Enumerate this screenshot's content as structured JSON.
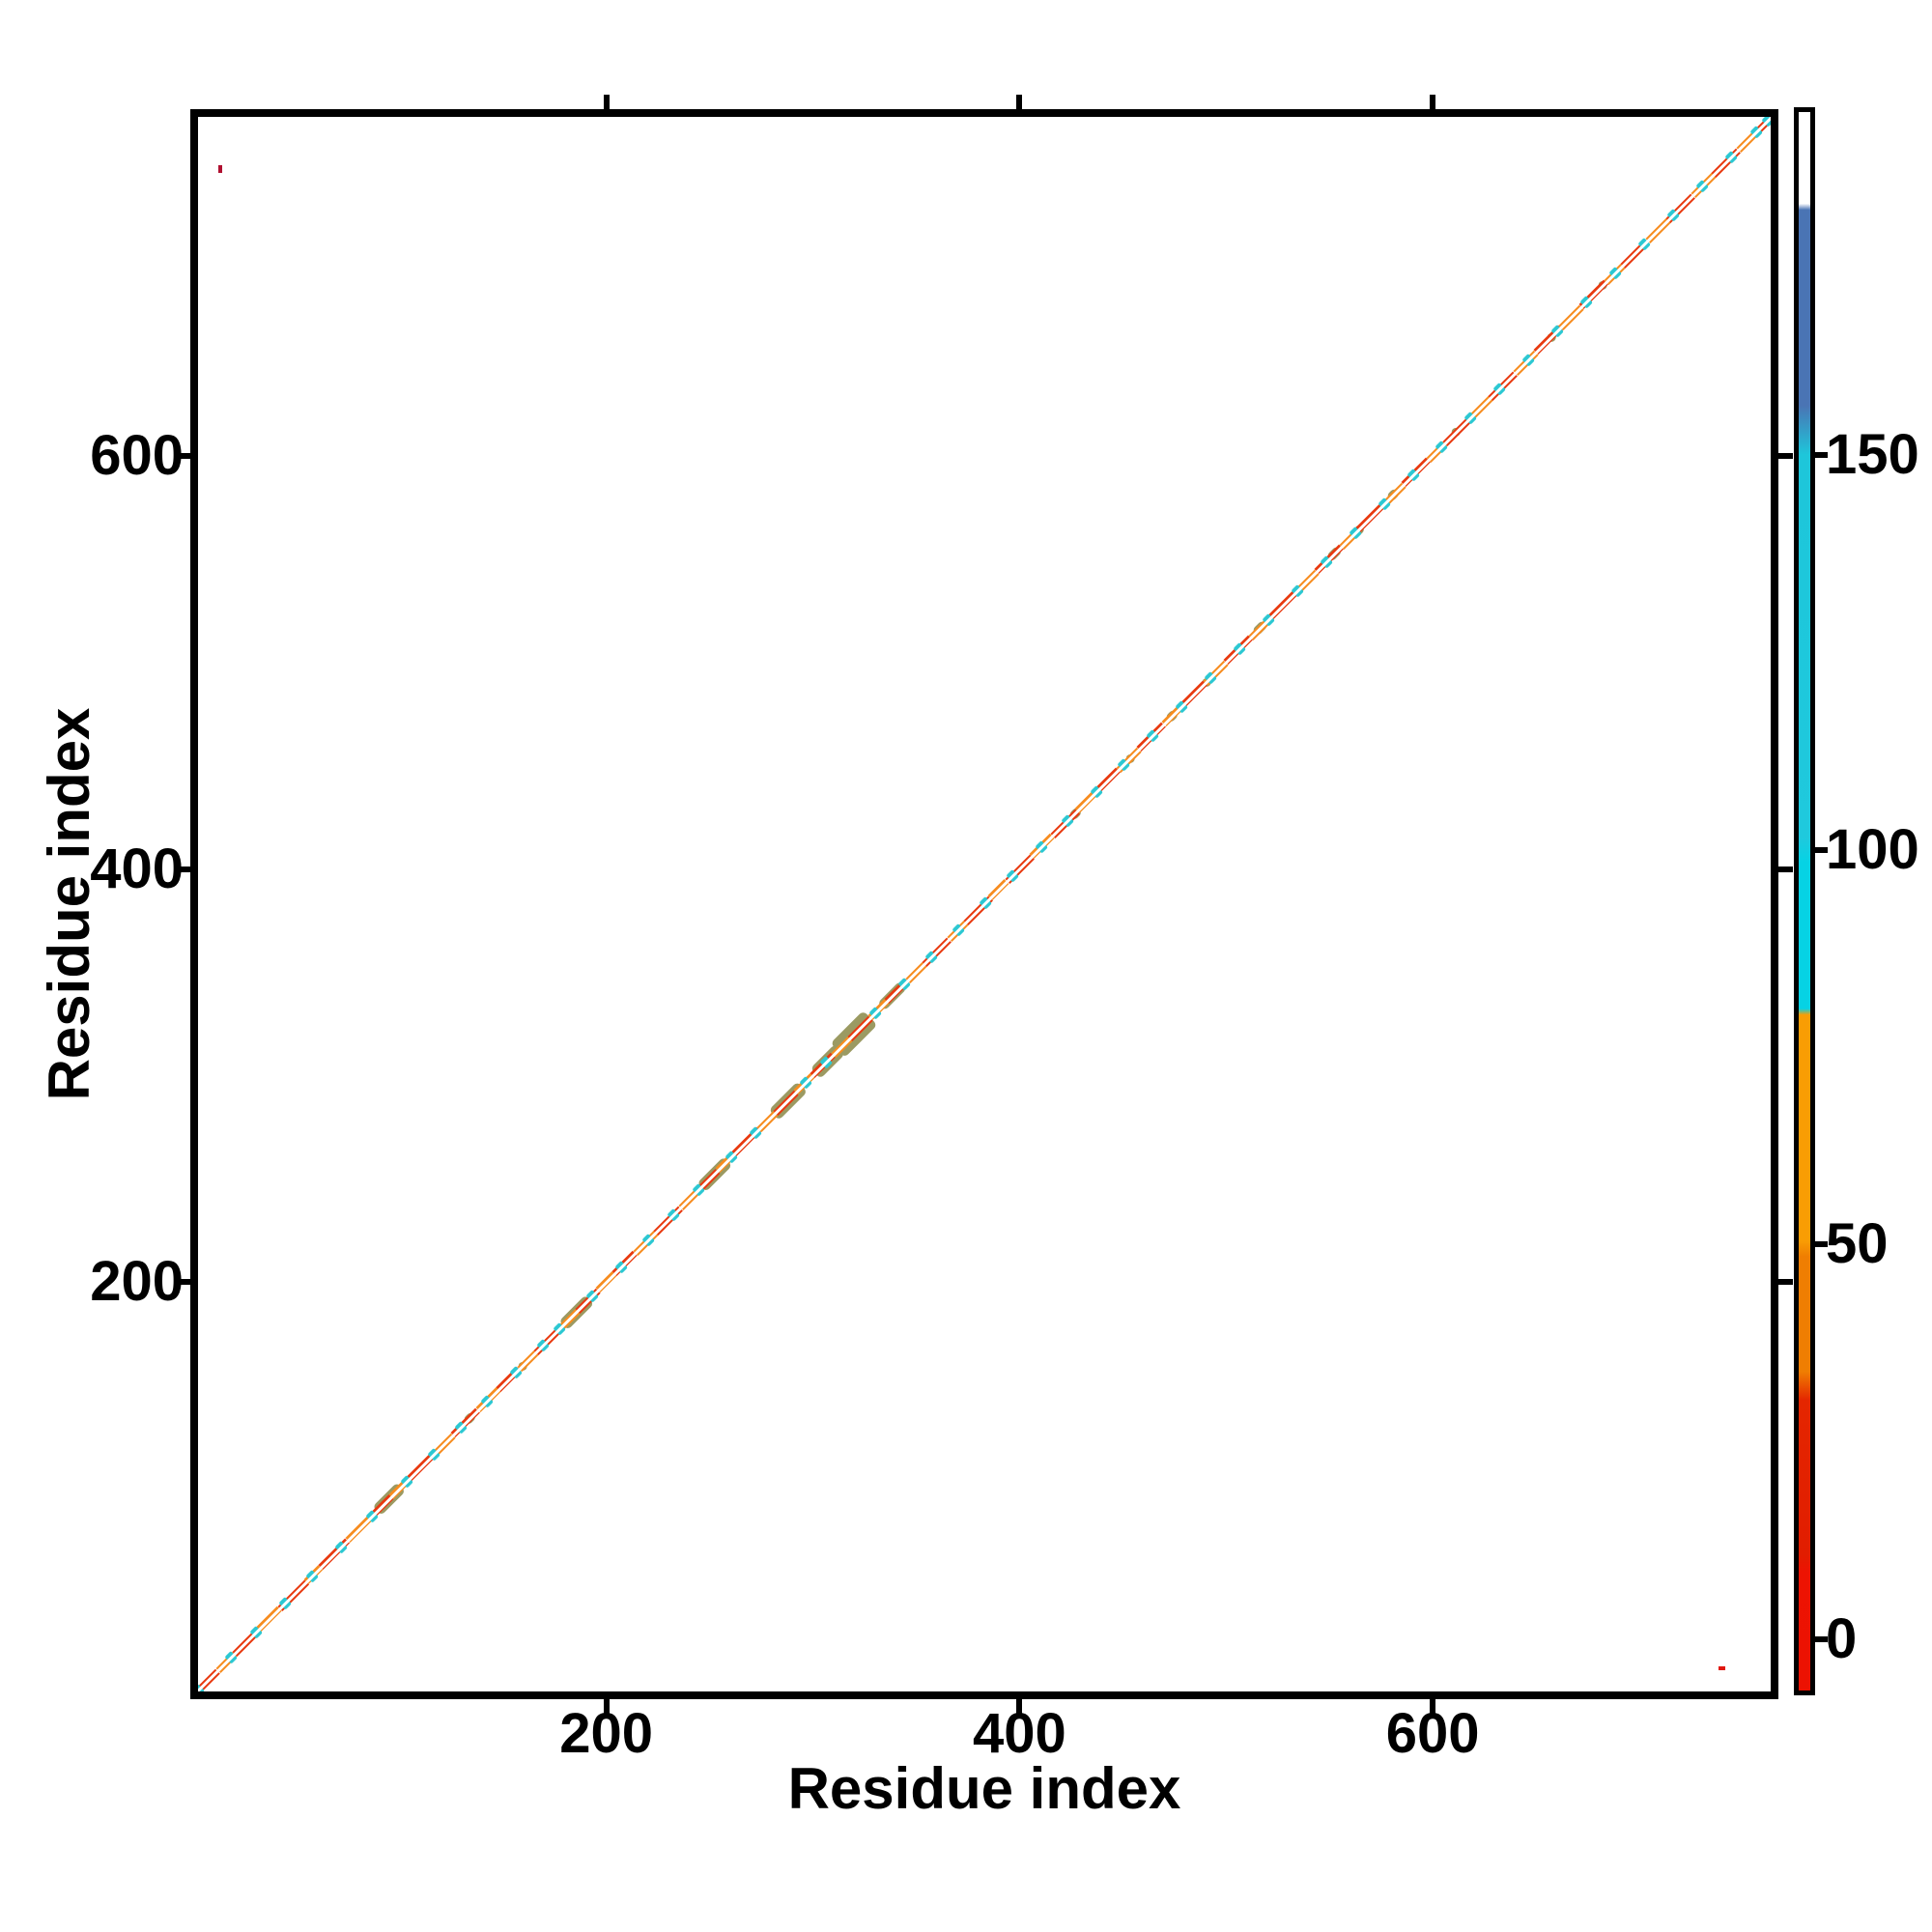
{
  "chart_data": {
    "type": "heatmap",
    "title": "",
    "xlabel": "Residue index",
    "ylabel": "Residue index",
    "xlim": [
      1,
      764
    ],
    "ylim": [
      1,
      764
    ],
    "x_ticks": [
      "200",
      "400",
      "600"
    ],
    "x_tick_values": [
      200,
      400,
      600
    ],
    "y_ticks": [
      "200",
      "400",
      "600"
    ],
    "y_tick_values": [
      200,
      400,
      600
    ],
    "grid": false,
    "legend": "none",
    "description": "Residue-residue contact map: contacts lie only along the main diagonal, colored by value; two isolated off-diagonal red points.",
    "colorbar": {
      "position": "right",
      "tick_labels": [
        "0",
        "50",
        "100",
        "150"
      ],
      "tick_values": [
        0,
        50,
        100,
        150
      ],
      "vmin": -7,
      "vmax": 193,
      "stops": [
        [
          0.0,
          "#ffffff"
        ],
        [
          5.8,
          "#ffffff"
        ],
        [
          6.2,
          "#4a74b4"
        ],
        [
          18.6,
          "#4a74b4"
        ],
        [
          21.7,
          "#1ec6da"
        ],
        [
          46.0,
          "#1fc9dd"
        ],
        [
          47.5,
          "#06d2e4"
        ],
        [
          56.8,
          "#06d2e4"
        ],
        [
          57.2,
          "#f99d04"
        ],
        [
          71.5,
          "#f99d04"
        ],
        [
          72.5,
          "#ef7e02"
        ],
        [
          79.8,
          "#ef7e02"
        ],
        [
          81.6,
          "#e42600"
        ],
        [
          91.4,
          "#e11d00"
        ],
        [
          92.5,
          "#ed1302"
        ],
        [
          100.0,
          "#ec1202"
        ]
      ]
    },
    "colors": {
      "R": "#e8380e",
      "O": "#f78c1e",
      "C": "#2cc8d2",
      "olive": "#9b9a62",
      "center": "#ffffff",
      "dot1": "#b01030",
      "dot2": "#e01810",
      "axis": "#000000",
      "background": "#ffffff"
    },
    "diagonal_segments": [
      [
        1,
        12,
        "R"
      ],
      [
        12,
        20,
        "O"
      ],
      [
        20,
        32,
        "R"
      ],
      [
        32,
        42,
        "O"
      ],
      [
        42,
        55,
        "R"
      ],
      [
        55,
        62,
        "O"
      ],
      [
        62,
        75,
        "R"
      ],
      [
        75,
        88,
        "O"
      ],
      [
        88,
        96,
        "R"
      ],
      [
        96,
        104,
        "O"
      ],
      [
        104,
        116,
        "R"
      ],
      [
        116,
        126,
        "O"
      ],
      [
        126,
        138,
        "R"
      ],
      [
        138,
        148,
        "O"
      ],
      [
        148,
        158,
        "R"
      ],
      [
        158,
        166,
        "O"
      ],
      [
        166,
        178,
        "R"
      ],
      [
        178,
        186,
        "O"
      ],
      [
        186,
        196,
        "R"
      ],
      [
        196,
        204,
        "O"
      ],
      [
        204,
        214,
        "R"
      ],
      [
        214,
        224,
        "O"
      ],
      [
        224,
        236,
        "R"
      ],
      [
        236,
        246,
        "O"
      ],
      [
        246,
        254,
        "R"
      ],
      [
        254,
        262,
        "O"
      ],
      [
        262,
        274,
        "R"
      ],
      [
        274,
        282,
        "O"
      ],
      [
        282,
        292,
        "R"
      ],
      [
        292,
        300,
        "O"
      ],
      [
        300,
        310,
        "R"
      ],
      [
        310,
        318,
        "O"
      ],
      [
        318,
        328,
        "R"
      ],
      [
        328,
        336,
        "O"
      ],
      [
        336,
        346,
        "R"
      ],
      [
        346,
        354,
        "O"
      ],
      [
        354,
        366,
        "R"
      ],
      [
        366,
        374,
        "O"
      ],
      [
        374,
        386,
        "R"
      ],
      [
        386,
        394,
        "O"
      ],
      [
        394,
        406,
        "R"
      ],
      [
        406,
        416,
        "O"
      ],
      [
        416,
        428,
        "R"
      ],
      [
        428,
        436,
        "O"
      ],
      [
        436,
        448,
        "R"
      ],
      [
        448,
        458,
        "O"
      ],
      [
        458,
        470,
        "R"
      ],
      [
        470,
        478,
        "O"
      ],
      [
        478,
        490,
        "R"
      ],
      [
        490,
        500,
        "O"
      ],
      [
        500,
        512,
        "R"
      ],
      [
        512,
        522,
        "O"
      ],
      [
        522,
        534,
        "R"
      ],
      [
        534,
        544,
        "O"
      ],
      [
        544,
        556,
        "R"
      ],
      [
        556,
        564,
        "O"
      ],
      [
        564,
        576,
        "R"
      ],
      [
        576,
        586,
        "O"
      ],
      [
        586,
        598,
        "R"
      ],
      [
        598,
        606,
        "O"
      ],
      [
        606,
        618,
        "R"
      ],
      [
        618,
        628,
        "O"
      ],
      [
        628,
        640,
        "R"
      ],
      [
        640,
        650,
        "O"
      ],
      [
        650,
        662,
        "R"
      ],
      [
        662,
        672,
        "O"
      ],
      [
        672,
        684,
        "R"
      ],
      [
        684,
        692,
        "O"
      ],
      [
        692,
        704,
        "R"
      ],
      [
        704,
        714,
        "O"
      ],
      [
        714,
        726,
        "R"
      ],
      [
        726,
        736,
        "O"
      ],
      [
        736,
        748,
        "R"
      ],
      [
        748,
        756,
        "O"
      ],
      [
        756,
        764,
        "R"
      ]
    ],
    "cyan_dashes": [
      [
        1,
        4
      ],
      [
        17,
        20
      ],
      [
        29,
        32
      ],
      [
        43,
        46
      ],
      [
        56,
        59
      ],
      [
        70,
        73
      ],
      [
        85,
        88
      ],
      [
        102,
        105
      ],
      [
        115,
        118
      ],
      [
        128,
        131
      ],
      [
        141,
        144
      ],
      [
        155,
        158
      ],
      [
        168,
        171
      ],
      [
        176,
        179
      ],
      [
        192,
        195
      ],
      [
        206,
        209
      ],
      [
        219,
        222
      ],
      [
        231,
        234
      ],
      [
        243,
        246
      ],
      [
        259,
        262
      ],
      [
        271,
        274
      ],
      [
        295,
        298
      ],
      [
        305,
        308
      ],
      [
        329,
        332
      ],
      [
        343,
        346
      ],
      [
        356,
        359
      ],
      [
        369,
        372
      ],
      [
        382,
        385
      ],
      [
        395,
        398
      ],
      [
        409,
        412
      ],
      [
        422,
        425
      ],
      [
        436,
        439
      ],
      [
        449,
        452
      ],
      [
        463,
        466
      ],
      [
        477,
        480
      ],
      [
        491,
        494
      ],
      [
        505,
        508
      ],
      [
        519,
        522
      ],
      [
        533,
        536
      ],
      [
        547,
        550
      ],
      [
        561,
        564
      ],
      [
        575,
        578
      ],
      [
        589,
        592
      ],
      [
        603,
        606
      ],
      [
        617,
        620
      ],
      [
        631,
        634
      ],
      [
        645,
        648
      ],
      [
        659,
        662
      ],
      [
        673,
        676
      ],
      [
        687,
        690
      ],
      [
        701,
        704
      ],
      [
        715,
        718
      ],
      [
        729,
        732
      ],
      [
        743,
        746
      ],
      [
        755,
        758
      ],
      [
        761,
        764
      ]
    ],
    "olive_blobs": [
      [
        89,
        101,
        13
      ],
      [
        132,
        136,
        9
      ],
      [
        158,
        161,
        9
      ],
      [
        179,
        192,
        13
      ],
      [
        246,
        259,
        13
      ],
      [
        281,
        295,
        15
      ],
      [
        301,
        313,
        15
      ],
      [
        312,
        328,
        21
      ],
      [
        333,
        344,
        11
      ],
      [
        425,
        429,
        9
      ],
      [
        452,
        455,
        9
      ],
      [
        472,
        476,
        9
      ],
      [
        489,
        492,
        9
      ],
      [
        514,
        519,
        9
      ],
      [
        550,
        555,
        9
      ],
      [
        562,
        566,
        9
      ],
      [
        579,
        583,
        9
      ],
      [
        610,
        613,
        9
      ],
      [
        656,
        659,
        9
      ],
      [
        681,
        684,
        9
      ]
    ],
    "off_diagonal_points": [
      {
        "x": 13,
        "y": 739
      },
      {
        "x": 740,
        "y": 13
      }
    ]
  }
}
